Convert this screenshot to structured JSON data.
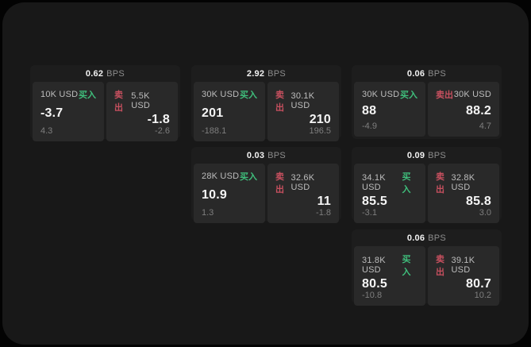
{
  "labels": {
    "bps": "BPS",
    "buy": "买入",
    "sell": "卖出"
  },
  "colors": {
    "background": "#030303",
    "window_bg": "#181818",
    "card_bg": "#1d1d1d",
    "panel_bg": "#292929",
    "buy_green": "#3fbf7c",
    "sell_red": "#c7505f",
    "value_white": "#f5f5f5",
    "muted_gray": "#7e7e7e"
  },
  "cards": [
    {
      "bps": "0.62",
      "buy": {
        "notional": "10K USD",
        "price": "-3.7",
        "delta": "4.3"
      },
      "sell": {
        "notional": "5.5K USD",
        "price": "-1.8",
        "delta": "-2.6"
      }
    },
    {
      "bps": "2.92",
      "buy": {
        "notional": "30K USD",
        "price": "201",
        "delta": "-188.1"
      },
      "sell": {
        "notional": "30.1K USD",
        "price": "210",
        "delta": "196.5"
      }
    },
    {
      "bps": "0.06",
      "buy": {
        "notional": "30K USD",
        "price": "88",
        "delta": "-4.9"
      },
      "sell": {
        "notional": "30K USD",
        "price": "88.2",
        "delta": "4.7"
      }
    },
    {
      "bps": "0.03",
      "buy": {
        "notional": "28K USD",
        "price": "10.9",
        "delta": "1.3"
      },
      "sell": {
        "notional": "32.6K USD",
        "price": "11",
        "delta": "-1.8"
      }
    },
    {
      "bps": "0.09",
      "buy": {
        "notional": "34.1K USD",
        "price": "85.5",
        "delta": "-3.1"
      },
      "sell": {
        "notional": "32.8K USD",
        "price": "85.8",
        "delta": "3.0"
      }
    },
    {
      "bps": "0.06",
      "buy": {
        "notional": "31.8K USD",
        "price": "80.5",
        "delta": "-10.8"
      },
      "sell": {
        "notional": "39.1K USD",
        "price": "80.7",
        "delta": "10.2"
      }
    }
  ]
}
